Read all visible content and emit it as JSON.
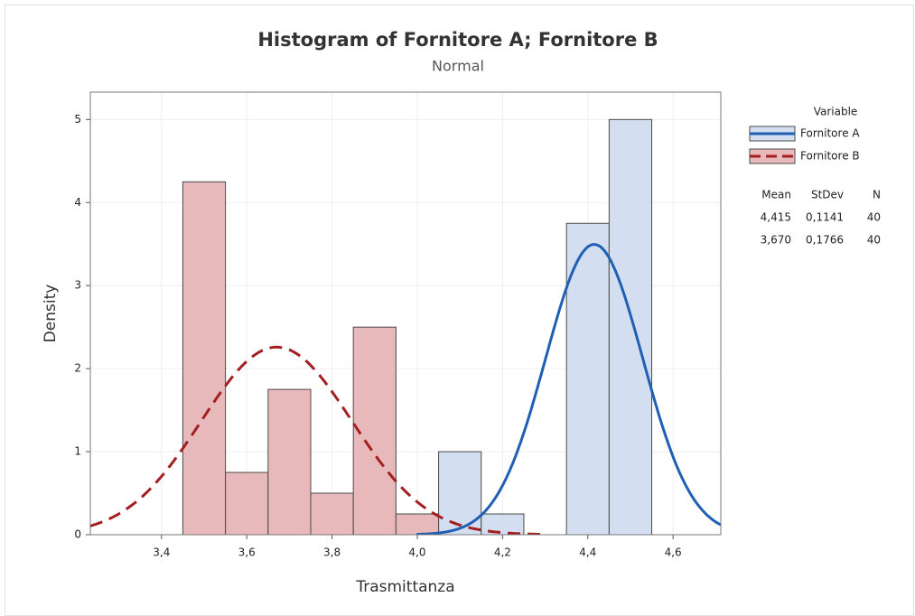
{
  "chart_data": {
    "type": "histogram",
    "title": "Histogram of Fornitore A; Fornitore B",
    "subtitle": "Normal",
    "xlabel": "Trasmittanza",
    "ylabel": "Density",
    "xlim": [
      3.233,
      4.712
    ],
    "ylim": [
      0,
      5.33
    ],
    "xticks": [
      {
        "value": 3.4,
        "label": "3,4"
      },
      {
        "value": 3.6,
        "label": "3,6"
      },
      {
        "value": 3.8,
        "label": "3,8"
      },
      {
        "value": 4.0,
        "label": "4,0"
      },
      {
        "value": 4.2,
        "label": "4,2"
      },
      {
        "value": 4.4,
        "label": "4,4"
      },
      {
        "value": 4.6,
        "label": "4,6"
      }
    ],
    "yticks": [
      0,
      1,
      2,
      3,
      4,
      5
    ],
    "grid": true,
    "legend_title": "Variable",
    "stats_headers": [
      "Mean",
      "StDev",
      "N"
    ],
    "series": [
      {
        "name": "Fornitore A",
        "color": "#d3dff0",
        "line_color": "#1f5fb4",
        "dashed": false,
        "bins": [
          4.05,
          4.15,
          4.25,
          4.35,
          4.45,
          4.55
        ],
        "values": [
          1.0,
          0.25,
          0,
          3.75,
          5.0
        ],
        "mean": {
          "value": 4.415,
          "label": "4,415"
        },
        "stdev": {
          "value": 0.1141,
          "label": "0,1141"
        },
        "n": 40
      },
      {
        "name": "Fornitore B",
        "color": "#e8b9bb",
        "line_color": "#a31f22",
        "dashed": true,
        "bins": [
          3.45,
          3.55,
          3.65,
          3.75,
          3.85,
          3.95,
          4.05
        ],
        "values": [
          4.25,
          0.75,
          1.75,
          0.5,
          2.5,
          0.25
        ],
        "mean": {
          "value": 3.67,
          "label": "3,670"
        },
        "stdev": {
          "value": 0.1766,
          "label": "0,1766"
        },
        "n": 40
      }
    ]
  }
}
